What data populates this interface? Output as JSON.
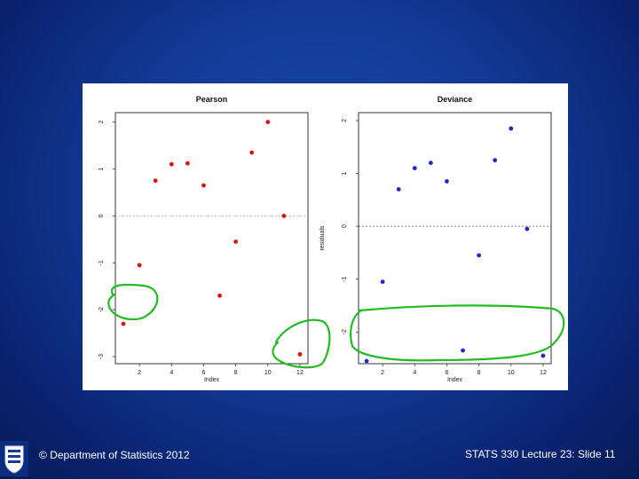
{
  "footer": {
    "left_text": "© Department of Statistics 2012",
    "right_text": "STATS 330 Lecture 23: Slide 11"
  },
  "colors": {
    "pearson_points": "#dd1111",
    "deviance_points": "#1a2ad0",
    "annotation": "#22bb22"
  },
  "chart_data": [
    {
      "type": "scatter",
      "title": "Pearson",
      "xlabel": "Index",
      "ylabel": "",
      "xlim": [
        0.5,
        12.5
      ],
      "ylim": [
        -3.15,
        2.2
      ],
      "x_ticks": [
        2,
        4,
        6,
        8,
        10,
        12
      ],
      "y_ticks": [
        -3,
        -2,
        -1,
        0,
        1,
        2
      ],
      "reference_line": 0,
      "points": [
        {
          "x": 1,
          "y": -2.3
        },
        {
          "x": 2,
          "y": -1.05
        },
        {
          "x": 3,
          "y": 0.75
        },
        {
          "x": 4,
          "y": 1.1
        },
        {
          "x": 5,
          "y": 1.12
        },
        {
          "x": 6,
          "y": 0.65
        },
        {
          "x": 7,
          "y": -1.7
        },
        {
          "x": 8,
          "y": -0.55
        },
        {
          "x": 9,
          "y": 1.35
        },
        {
          "x": 10,
          "y": 2.0
        },
        {
          "x": 11,
          "y": 0.0
        },
        {
          "x": 12,
          "y": -2.95
        }
      ],
      "highlighted_points": [
        1,
        12
      ]
    },
    {
      "type": "scatter",
      "title": "Deviance",
      "xlabel": "Index",
      "ylabel": "residuals",
      "xlim": [
        0.5,
        12.5
      ],
      "ylim": [
        -2.6,
        2.15
      ],
      "x_ticks": [
        2,
        4,
        6,
        8,
        10,
        12
      ],
      "y_ticks": [
        -2,
        -1,
        0,
        1,
        2
      ],
      "reference_line": 0,
      "points": [
        {
          "x": 1,
          "y": -2.55
        },
        {
          "x": 2,
          "y": -1.05
        },
        {
          "x": 3,
          "y": 0.7
        },
        {
          "x": 4,
          "y": 1.1
        },
        {
          "x": 5,
          "y": 1.2
        },
        {
          "x": 6,
          "y": 0.85
        },
        {
          "x": 7,
          "y": -2.35
        },
        {
          "x": 8,
          "y": -0.55
        },
        {
          "x": 9,
          "y": 1.25
        },
        {
          "x": 10,
          "y": 1.85
        },
        {
          "x": 11,
          "y": -0.05
        },
        {
          "x": 12,
          "y": -2.45
        }
      ],
      "highlighted_points": [
        1,
        7,
        12
      ]
    }
  ]
}
